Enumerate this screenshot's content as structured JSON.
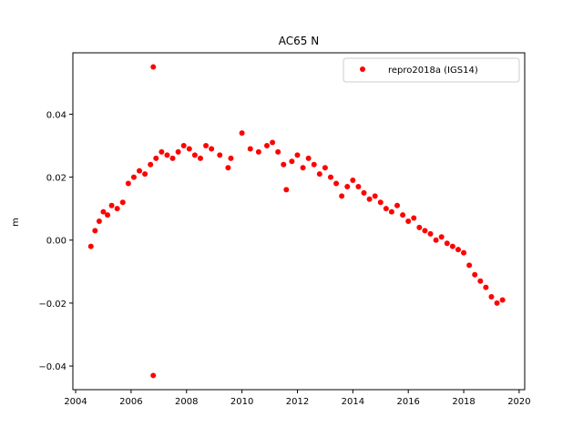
{
  "chart_data": {
    "type": "scatter",
    "title": "AC65 N",
    "xlabel": "",
    "ylabel": "m",
    "xlim": [
      2003.9,
      2020.2
    ],
    "ylim": [
      -0.0475,
      0.0595
    ],
    "xticks": [
      2004,
      2006,
      2008,
      2010,
      2012,
      2014,
      2016,
      2018,
      2020
    ],
    "yticks": [
      -0.04,
      -0.02,
      0.0,
      0.02,
      0.04
    ],
    "ytick_labels": [
      "−0.04",
      "−0.02",
      "0.00",
      "0.02",
      "0.04"
    ],
    "grid": false,
    "legend_position": "top-right",
    "series": [
      {
        "name": "repro2018a (IGS14)",
        "color": "#ff0000",
        "marker": "circle",
        "points": [
          [
            2004.55,
            -0.002
          ],
          [
            2004.7,
            0.003
          ],
          [
            2004.85,
            0.006
          ],
          [
            2005.0,
            0.009
          ],
          [
            2005.15,
            0.008
          ],
          [
            2005.3,
            0.011
          ],
          [
            2005.5,
            0.01
          ],
          [
            2005.7,
            0.012
          ],
          [
            2005.9,
            0.018
          ],
          [
            2006.1,
            0.02
          ],
          [
            2006.3,
            0.022
          ],
          [
            2006.5,
            0.021
          ],
          [
            2006.7,
            0.024
          ],
          [
            2006.8,
            0.055
          ],
          [
            2006.8,
            -0.043
          ],
          [
            2006.9,
            0.026
          ],
          [
            2007.1,
            0.028
          ],
          [
            2007.3,
            0.027
          ],
          [
            2007.5,
            0.026
          ],
          [
            2007.7,
            0.028
          ],
          [
            2007.9,
            0.03
          ],
          [
            2008.1,
            0.029
          ],
          [
            2008.3,
            0.027
          ],
          [
            2008.5,
            0.026
          ],
          [
            2008.7,
            0.03
          ],
          [
            2008.9,
            0.029
          ],
          [
            2009.2,
            0.027
          ],
          [
            2009.5,
            0.023
          ],
          [
            2009.6,
            0.026
          ],
          [
            2010.0,
            0.034
          ],
          [
            2010.3,
            0.029
          ],
          [
            2010.6,
            0.028
          ],
          [
            2010.9,
            0.03
          ],
          [
            2011.1,
            0.031
          ],
          [
            2011.3,
            0.028
          ],
          [
            2011.5,
            0.024
          ],
          [
            2011.6,
            0.016
          ],
          [
            2011.8,
            0.025
          ],
          [
            2012.0,
            0.027
          ],
          [
            2012.2,
            0.023
          ],
          [
            2012.4,
            0.026
          ],
          [
            2012.6,
            0.024
          ],
          [
            2012.8,
            0.021
          ],
          [
            2013.0,
            0.023
          ],
          [
            2013.2,
            0.02
          ],
          [
            2013.4,
            0.018
          ],
          [
            2013.6,
            0.014
          ],
          [
            2013.8,
            0.017
          ],
          [
            2014.0,
            0.019
          ],
          [
            2014.2,
            0.017
          ],
          [
            2014.4,
            0.015
          ],
          [
            2014.6,
            0.013
          ],
          [
            2014.8,
            0.014
          ],
          [
            2015.0,
            0.012
          ],
          [
            2015.2,
            0.01
          ],
          [
            2015.4,
            0.009
          ],
          [
            2015.6,
            0.011
          ],
          [
            2015.8,
            0.008
          ],
          [
            2016.0,
            0.006
          ],
          [
            2016.2,
            0.007
          ],
          [
            2016.4,
            0.004
          ],
          [
            2016.6,
            0.003
          ],
          [
            2016.8,
            0.002
          ],
          [
            2017.0,
            0.0
          ],
          [
            2017.2,
            0.001
          ],
          [
            2017.4,
            -0.001
          ],
          [
            2017.6,
            -0.002
          ],
          [
            2017.8,
            -0.003
          ],
          [
            2018.0,
            -0.004
          ],
          [
            2018.2,
            -0.008
          ],
          [
            2018.4,
            -0.011
          ],
          [
            2018.6,
            -0.013
          ],
          [
            2018.8,
            -0.015
          ],
          [
            2019.0,
            -0.018
          ],
          [
            2019.2,
            -0.02
          ],
          [
            2019.4,
            -0.019
          ]
        ]
      }
    ]
  }
}
